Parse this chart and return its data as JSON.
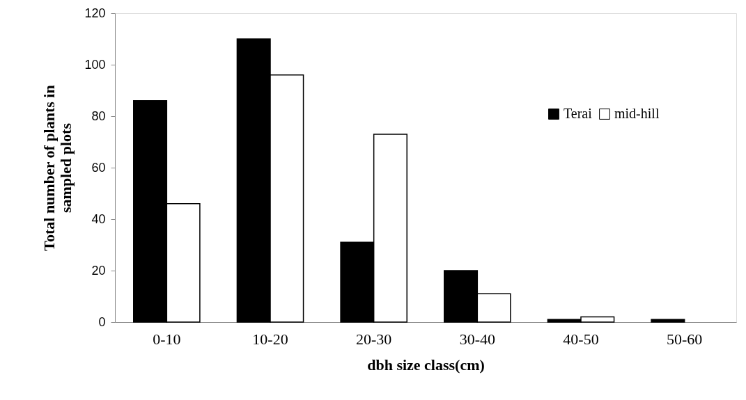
{
  "chart_data": {
    "type": "bar",
    "xlabel": "dbh size class(cm)",
    "ylabel": "Total number of plants in sampled plots",
    "categories": [
      "0-10",
      "10-20",
      "20-30",
      "30-40",
      "40-50",
      "50-60"
    ],
    "series": [
      {
        "name": "Terai",
        "color": "#000000",
        "values": [
          86,
          110,
          31,
          20,
          1,
          1
        ]
      },
      {
        "name": "mid-hill",
        "color": "#ffffff",
        "values": [
          46,
          96,
          73,
          11,
          2,
          null
        ]
      }
    ],
    "ylim": [
      0,
      120
    ],
    "yticks": [
      0,
      20,
      40,
      60,
      80,
      100,
      120
    ],
    "grid": false,
    "legend": "top right"
  }
}
